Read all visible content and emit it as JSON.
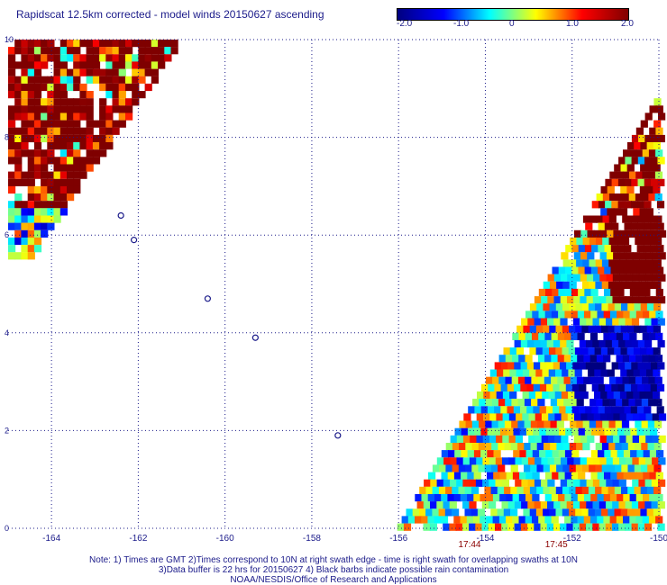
{
  "chart_data": {
    "type": "heatmap",
    "title": "Rapidscat 12.5km corrected - model winds 20150627 ascending",
    "colorbar": {
      "ticks": [
        "-2.0",
        "-1.0",
        "0",
        "1.0",
        "2.0"
      ],
      "range": [
        -2.0,
        2.0
      ],
      "colors": [
        "#00007f",
        "#0000ff",
        "#00ffff",
        "#ffff00",
        "#ff0000",
        "#7f0000"
      ]
    },
    "xlim": [
      -165,
      -150
    ],
    "ylim": [
      0,
      10
    ],
    "x_ticks": [
      "-164",
      "-162",
      "-160",
      "-158",
      "-156",
      "-154",
      "-152",
      "-150"
    ],
    "y_ticks": [
      "0",
      "2",
      "4",
      "6",
      "8",
      "10"
    ],
    "grid": true,
    "time_labels": [
      {
        "lon": -154,
        "text": "17:44"
      },
      {
        "lon": -152,
        "text": "17:45"
      }
    ],
    "swaths": [
      {
        "name": "northwest swath",
        "region": "lon -165 to -161, lat 5.6 to 10",
        "values": "mostly positive (1.0 to >2.0), some near 0"
      },
      {
        "name": "southeast swath",
        "region": "lon -156 to -150, lat 0 to 8.8",
        "values": "mixed -2.0 to >2.0; negative core near lon -151, lat 2-4"
      }
    ],
    "islands": [
      {
        "lon": -162.4,
        "lat": 6.4
      },
      {
        "lon": -162.1,
        "lat": 5.9
      },
      {
        "lon": -160.4,
        "lat": 4.7
      },
      {
        "lon": -159.3,
        "lat": 3.9
      },
      {
        "lon": -157.4,
        "lat": 1.9
      }
    ]
  },
  "notes": {
    "line1": "Note: 1) Times are GMT 2)Times correspond to 10N at right swath edge - time is right swath for overlapping swaths at 10N",
    "line2": "3)Data buffer is 22 hrs for 20150627 4) Black barbs indicate possible rain contamination",
    "line3": "NOAA/NESDIS/Office of Research and Applications"
  }
}
